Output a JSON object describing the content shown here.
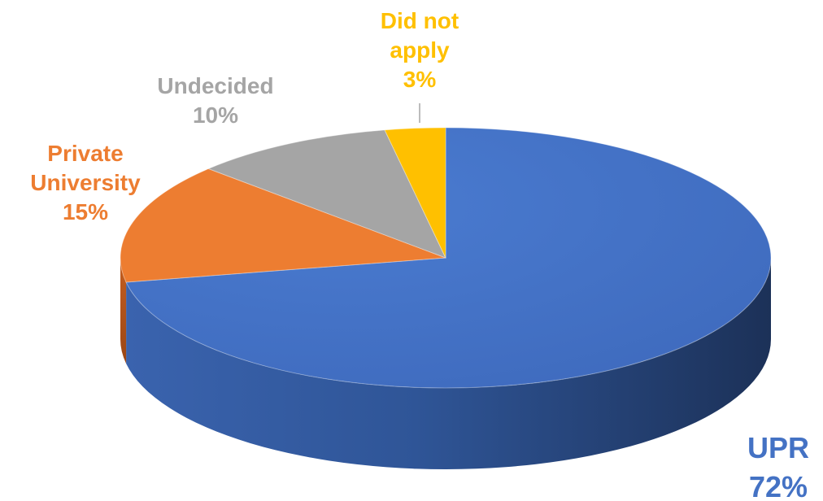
{
  "chart_data": {
    "type": "pie",
    "style": "3d",
    "title": "",
    "slices": [
      {
        "label_lines": [
          "UPR"
        ],
        "value_label": "72%",
        "value": 72,
        "color": "#4472C4"
      },
      {
        "label_lines": [
          "Private",
          "University"
        ],
        "value_label": "15%",
        "value": 15,
        "color": "#ED7D31"
      },
      {
        "label_lines": [
          "Undecided"
        ],
        "value_label": "10%",
        "value": 10,
        "color": "#A5A5A5"
      },
      {
        "label_lines": [
          "Did not",
          "apply"
        ],
        "value_label": "3%",
        "value": 3,
        "color": "#FFC000"
      }
    ]
  }
}
